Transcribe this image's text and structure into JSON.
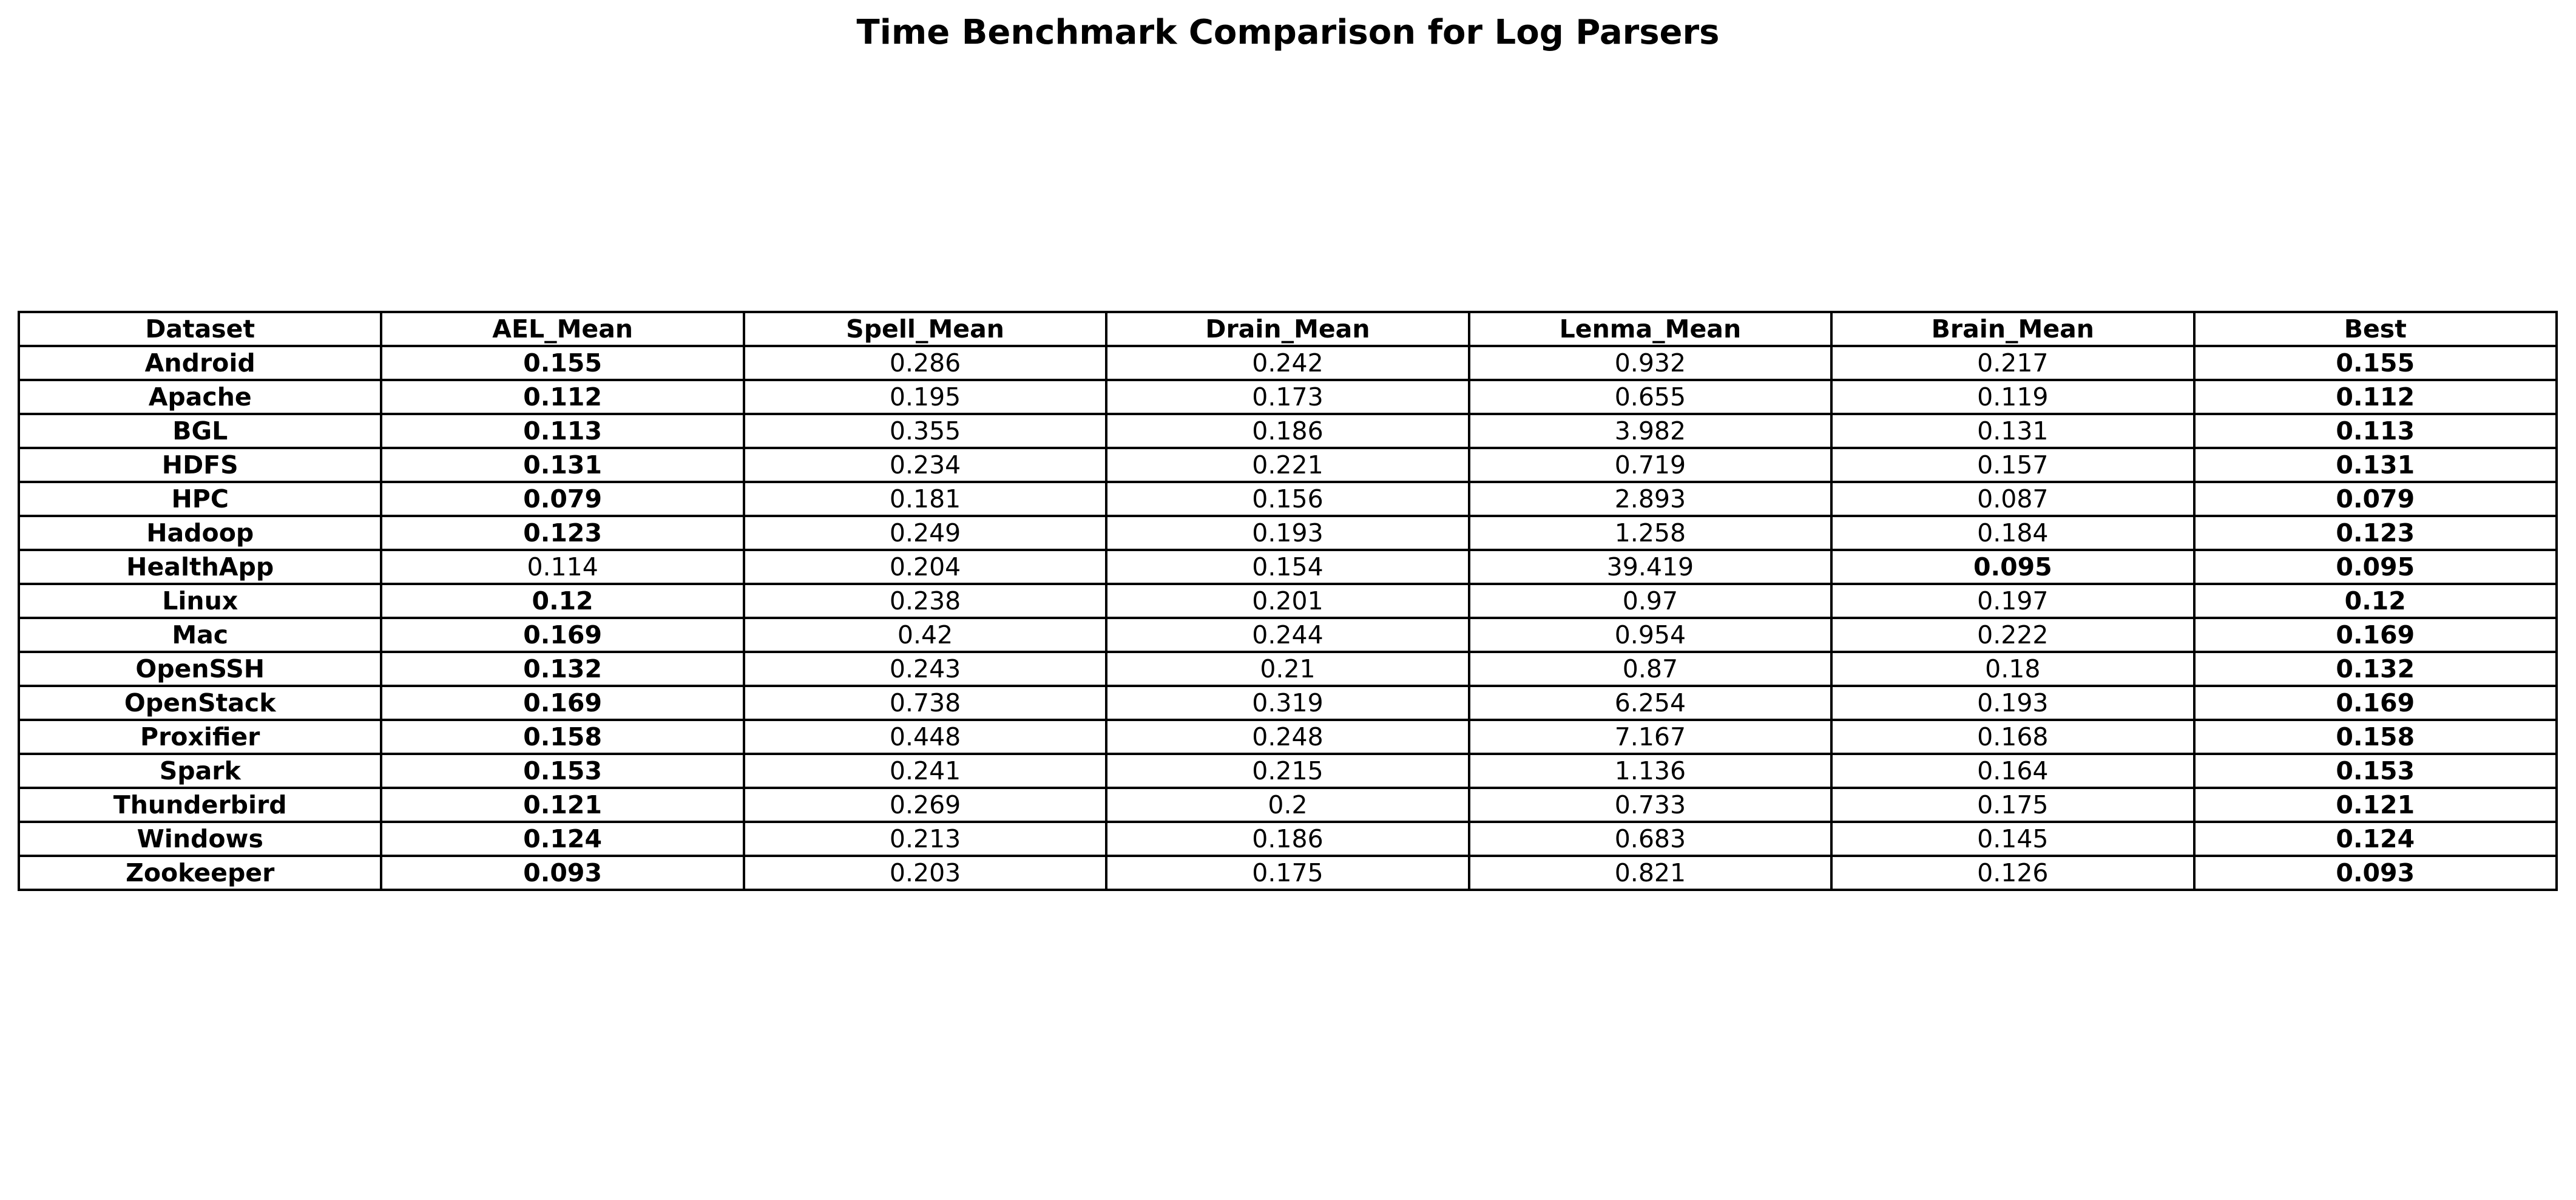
{
  "chart_data": {
    "type": "table",
    "title": "Time Benchmark Comparison for Log Parsers",
    "columns": [
      "Dataset",
      "AEL_Mean",
      "Spell_Mean",
      "Drain_Mean",
      "Lenma_Mean",
      "Brain_Mean",
      "Best"
    ],
    "rows": [
      {
        "values": [
          "Android",
          "0.155",
          "0.286",
          "0.242",
          "0.932",
          "0.217",
          "0.155"
        ],
        "best_col": 1
      },
      {
        "values": [
          "Apache",
          "0.112",
          "0.195",
          "0.173",
          "0.655",
          "0.119",
          "0.112"
        ],
        "best_col": 1
      },
      {
        "values": [
          "BGL",
          "0.113",
          "0.355",
          "0.186",
          "3.982",
          "0.131",
          "0.113"
        ],
        "best_col": 1
      },
      {
        "values": [
          "HDFS",
          "0.131",
          "0.234",
          "0.221",
          "0.719",
          "0.157",
          "0.131"
        ],
        "best_col": 1
      },
      {
        "values": [
          "HPC",
          "0.079",
          "0.181",
          "0.156",
          "2.893",
          "0.087",
          "0.079"
        ],
        "best_col": 1
      },
      {
        "values": [
          "Hadoop",
          "0.123",
          "0.249",
          "0.193",
          "1.258",
          "0.184",
          "0.123"
        ],
        "best_col": 1
      },
      {
        "values": [
          "HealthApp",
          "0.114",
          "0.204",
          "0.154",
          "39.419",
          "0.095",
          "0.095"
        ],
        "best_col": 5
      },
      {
        "values": [
          "Linux",
          "0.12",
          "0.238",
          "0.201",
          "0.97",
          "0.197",
          "0.12"
        ],
        "best_col": 1
      },
      {
        "values": [
          "Mac",
          "0.169",
          "0.42",
          "0.244",
          "0.954",
          "0.222",
          "0.169"
        ],
        "best_col": 1
      },
      {
        "values": [
          "OpenSSH",
          "0.132",
          "0.243",
          "0.21",
          "0.87",
          "0.18",
          "0.132"
        ],
        "best_col": 1
      },
      {
        "values": [
          "OpenStack",
          "0.169",
          "0.738",
          "0.319",
          "6.254",
          "0.193",
          "0.169"
        ],
        "best_col": 1
      },
      {
        "values": [
          "Proxifier",
          "0.158",
          "0.448",
          "0.248",
          "7.167",
          "0.168",
          "0.158"
        ],
        "best_col": 1
      },
      {
        "values": [
          "Spark",
          "0.153",
          "0.241",
          "0.215",
          "1.136",
          "0.164",
          "0.153"
        ],
        "best_col": 1
      },
      {
        "values": [
          "Thunderbird",
          "0.121",
          "0.269",
          "0.2",
          "0.733",
          "0.175",
          "0.121"
        ],
        "best_col": 1
      },
      {
        "values": [
          "Windows",
          "0.124",
          "0.213",
          "0.186",
          "0.683",
          "0.145",
          "0.124"
        ],
        "best_col": 1
      },
      {
        "values": [
          "Zookeeper",
          "0.093",
          "0.203",
          "0.175",
          "0.821",
          "0.126",
          "0.093"
        ],
        "best_col": 1
      }
    ]
  }
}
